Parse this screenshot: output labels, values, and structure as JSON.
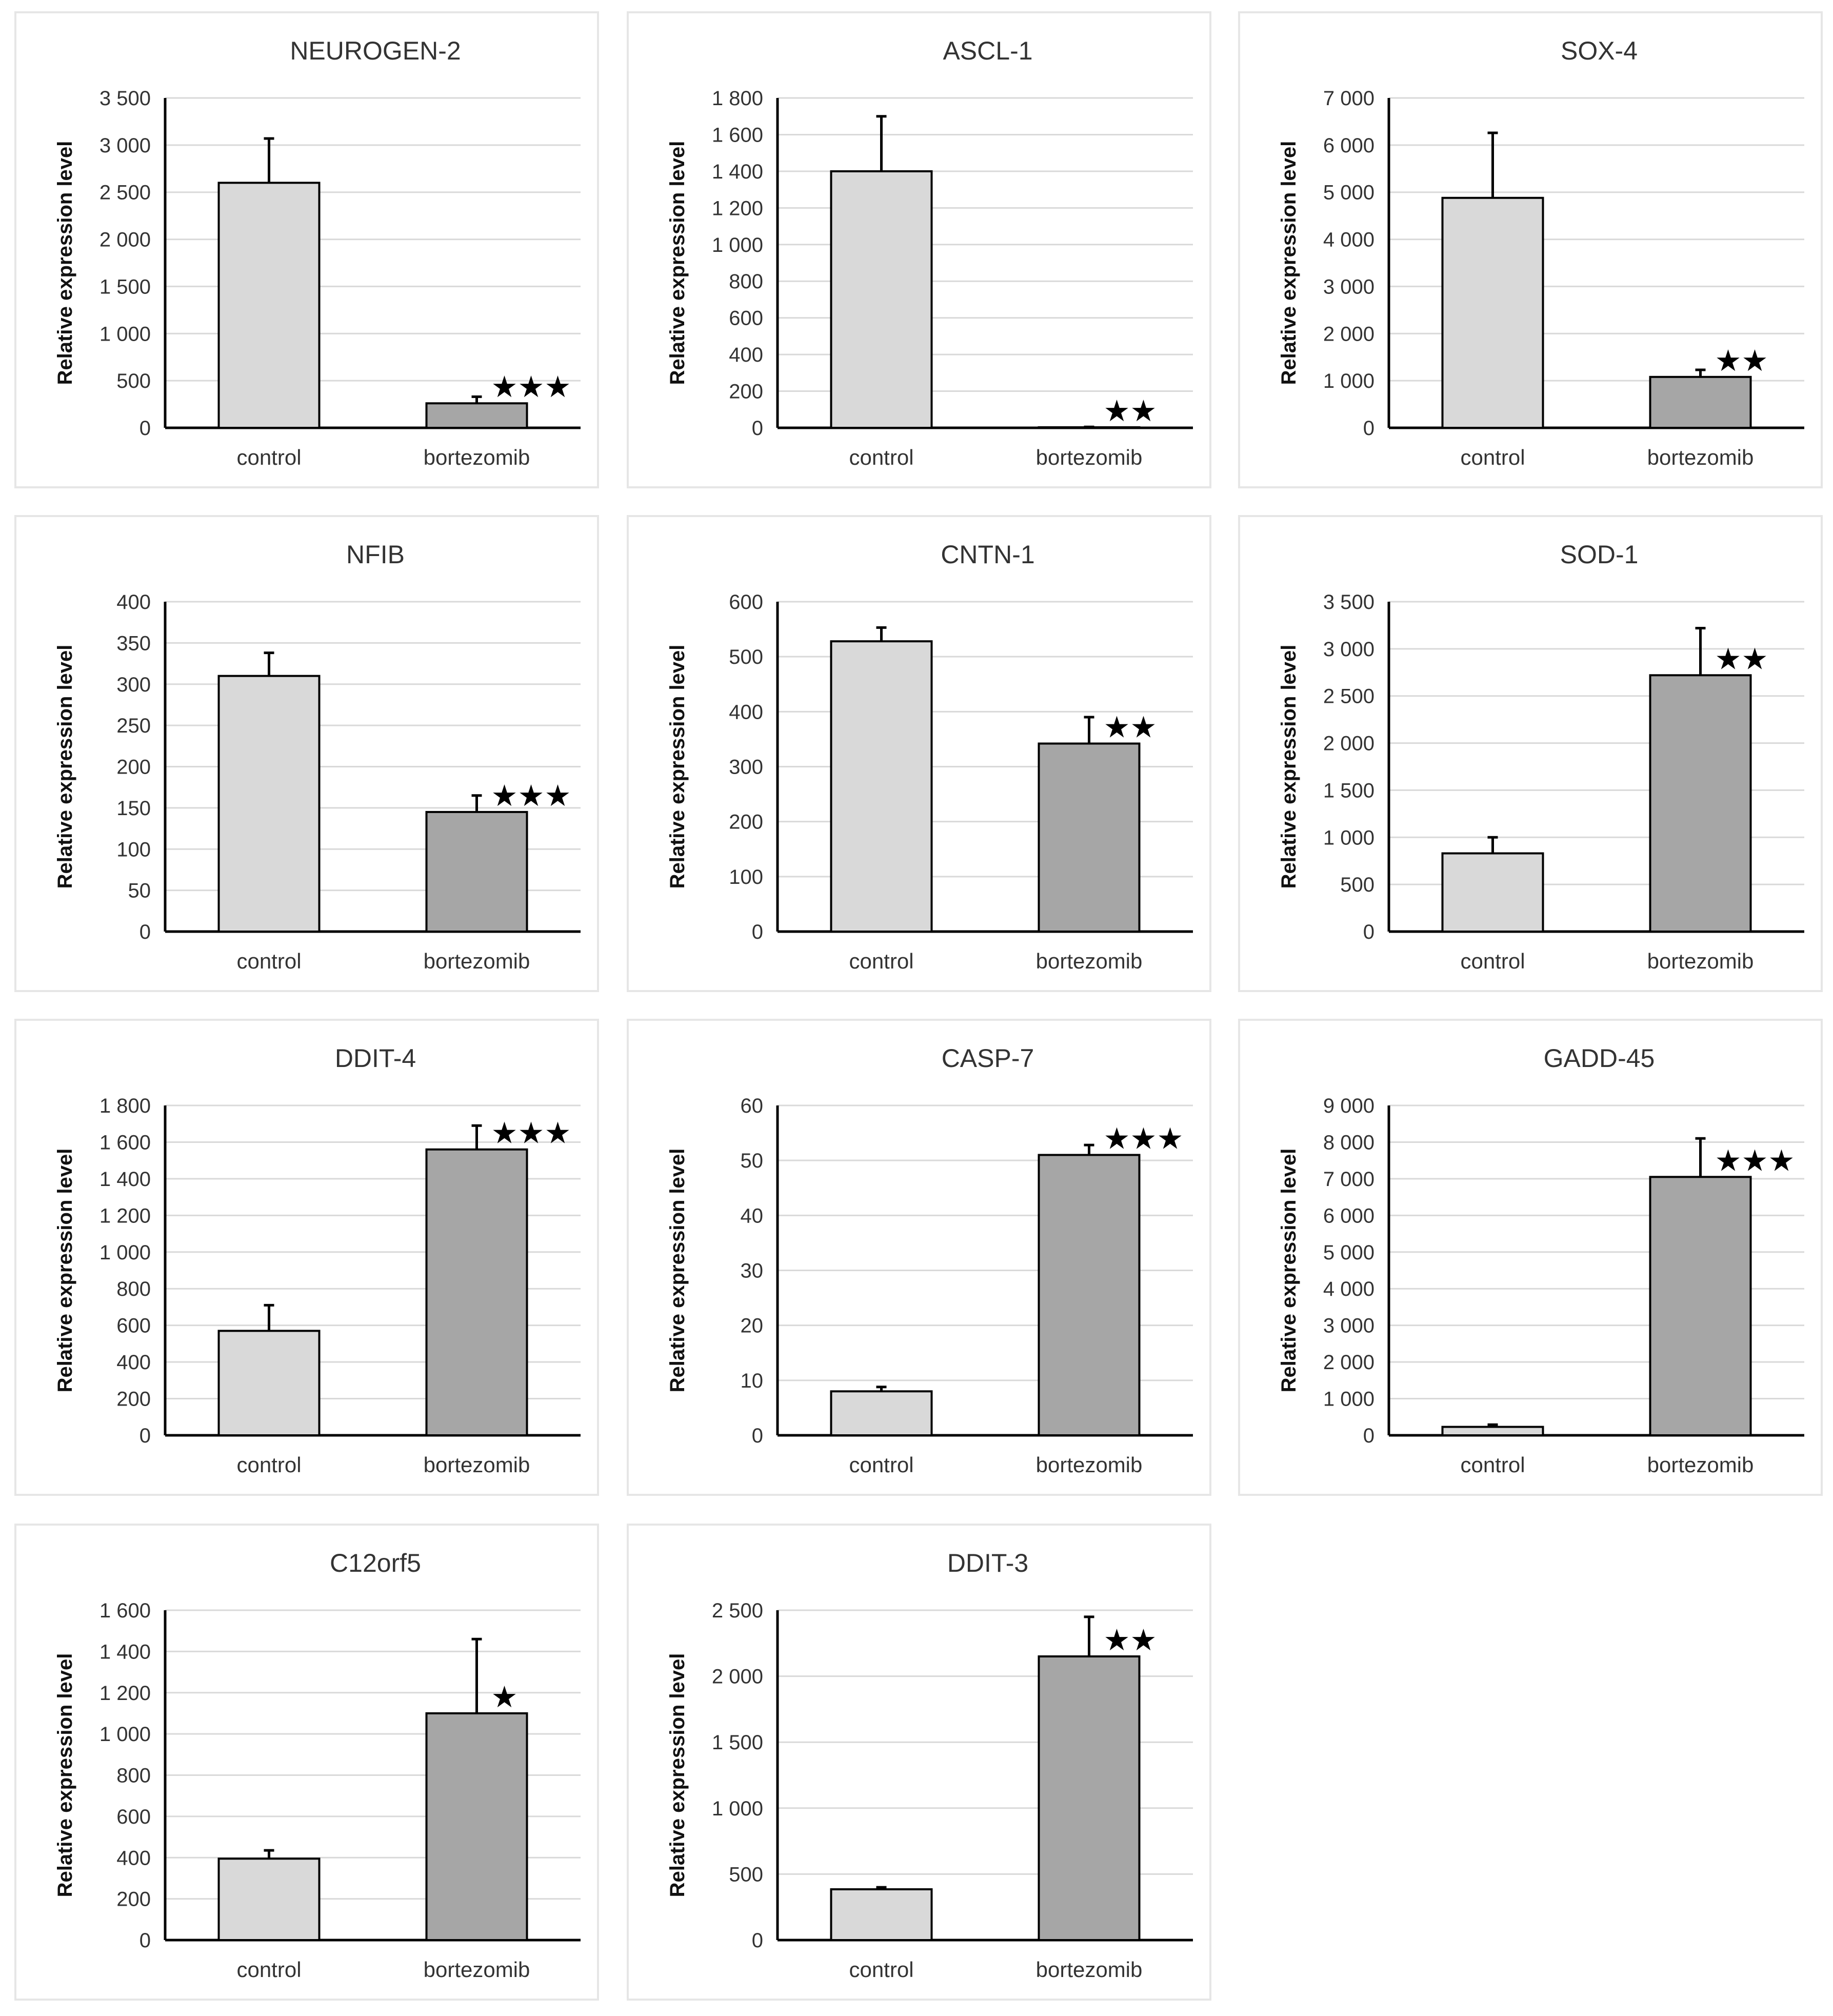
{
  "colors": {
    "control_bar": "#d9d9d9",
    "bortezomib_bar": "#a6a6a6",
    "bar_stroke": "#000000",
    "gridline": "#d9d9d9",
    "axis": "#000000",
    "panel_border": "#e6e6e6"
  },
  "chart_data": [
    {
      "type": "bar",
      "title": "NEUROGEN-2",
      "ylabel": "Relative expression level",
      "xlabel": "",
      "categories": [
        "control",
        "bortezomib"
      ],
      "values": [
        2600,
        260
      ],
      "errors": [
        470,
        70
      ],
      "significance": [
        "",
        "***"
      ],
      "ylim": [
        0,
        3500
      ],
      "yticks": [
        0,
        500,
        1000,
        1500,
        2000,
        2500,
        3000,
        3500
      ],
      "ytick_labels": [
        "0",
        "500",
        "1 000",
        "1 500",
        "2 000",
        "2 500",
        "3 000",
        "3 500"
      ],
      "grid": true
    },
    {
      "type": "bar",
      "title": "ASCL-1",
      "ylabel": "Relative expression level",
      "xlabel": "",
      "categories": [
        "control",
        "bortezomib"
      ],
      "values": [
        1400,
        3
      ],
      "errors": [
        300,
        2
      ],
      "significance": [
        "",
        "**"
      ],
      "ylim": [
        0,
        1800
      ],
      "yticks": [
        0,
        200,
        400,
        600,
        800,
        1000,
        1200,
        1400,
        1600,
        1800
      ],
      "ytick_labels": [
        "0",
        "200",
        "400",
        "600",
        "800",
        "1 000",
        "1 200",
        "1 400",
        "1 600",
        "1 800"
      ],
      "grid": true
    },
    {
      "type": "bar",
      "title": "SOX-4",
      "ylabel": "Relative expression level",
      "xlabel": "",
      "categories": [
        "control",
        "bortezomib"
      ],
      "values": [
        4880,
        1080
      ],
      "errors": [
        1380,
        150
      ],
      "significance": [
        "",
        "**"
      ],
      "ylim": [
        0,
        7000
      ],
      "yticks": [
        0,
        1000,
        2000,
        3000,
        4000,
        5000,
        6000,
        7000
      ],
      "ytick_labels": [
        "0",
        "1 000",
        "2 000",
        "3 000",
        "4 000",
        "5 000",
        "6 000",
        "7 000"
      ],
      "grid": true
    },
    {
      "type": "bar",
      "title": "NFIB",
      "ylabel": "Relative expression level",
      "xlabel": "",
      "categories": [
        "control",
        "bortezomib"
      ],
      "values": [
        310,
        145
      ],
      "errors": [
        28,
        20
      ],
      "significance": [
        "",
        "***"
      ],
      "ylim": [
        0,
        400
      ],
      "yticks": [
        0,
        50,
        100,
        150,
        200,
        250,
        300,
        350,
        400
      ],
      "ytick_labels": [
        "0",
        "50",
        "100",
        "150",
        "200",
        "250",
        "300",
        "350",
        "400"
      ],
      "grid": true
    },
    {
      "type": "bar",
      "title": "CNTN-1",
      "ylabel": "Relative expression level",
      "xlabel": "",
      "categories": [
        "control",
        "bortezomib"
      ],
      "values": [
        528,
        342
      ],
      "errors": [
        25,
        48
      ],
      "significance": [
        "",
        "**"
      ],
      "ylim": [
        0,
        600
      ],
      "yticks": [
        0,
        100,
        200,
        300,
        400,
        500,
        600
      ],
      "ytick_labels": [
        "0",
        "100",
        "200",
        "300",
        "400",
        "500",
        "600"
      ],
      "grid": true
    },
    {
      "type": "bar",
      "title": "SOD-1",
      "ylabel": "Relative expression level",
      "xlabel": "",
      "categories": [
        "control",
        "bortezomib"
      ],
      "values": [
        830,
        2720
      ],
      "errors": [
        170,
        500
      ],
      "significance": [
        "",
        "**"
      ],
      "ylim": [
        0,
        3500
      ],
      "yticks": [
        0,
        500,
        1000,
        1500,
        2000,
        2500,
        3000,
        3500
      ],
      "ytick_labels": [
        "0",
        "500",
        "1 000",
        "1 500",
        "2 000",
        "2 500",
        "3 000",
        "3 500"
      ],
      "grid": true
    },
    {
      "type": "bar",
      "title": "DDIT-4",
      "ylabel": "Relative expression level",
      "xlabel": "",
      "categories": [
        "control",
        "bortezomib"
      ],
      "values": [
        570,
        1560
      ],
      "errors": [
        140,
        130
      ],
      "significance": [
        "",
        "***"
      ],
      "ylim": [
        0,
        1800
      ],
      "yticks": [
        0,
        200,
        400,
        600,
        800,
        1000,
        1200,
        1400,
        1600,
        1800
      ],
      "ytick_labels": [
        "0",
        "200",
        "400",
        "600",
        "800",
        "1 000",
        "1 200",
        "1 400",
        "1 600",
        "1 800"
      ],
      "grid": true
    },
    {
      "type": "bar",
      "title": "CASP-7",
      "ylabel": "Relative expression level",
      "xlabel": "",
      "categories": [
        "control",
        "bortezomib"
      ],
      "values": [
        8,
        51
      ],
      "errors": [
        0.8,
        1.8
      ],
      "significance": [
        "",
        "***"
      ],
      "ylim": [
        0,
        60
      ],
      "yticks": [
        0,
        10,
        20,
        30,
        40,
        50,
        60
      ],
      "ytick_labels": [
        "0",
        "10",
        "20",
        "30",
        "40",
        "50",
        "60"
      ],
      "grid": true
    },
    {
      "type": "bar",
      "title": "GADD-45",
      "ylabel": "Relative expression level",
      "xlabel": "",
      "categories": [
        "control",
        "bortezomib"
      ],
      "values": [
        230,
        7050
      ],
      "errors": [
        60,
        1050
      ],
      "significance": [
        "",
        "***"
      ],
      "ylim": [
        0,
        9000
      ],
      "yticks": [
        0,
        1000,
        2000,
        3000,
        4000,
        5000,
        6000,
        7000,
        8000,
        9000
      ],
      "ytick_labels": [
        "0",
        "1 000",
        "2 000",
        "3 000",
        "4 000",
        "5 000",
        "6 000",
        "7 000",
        "8 000",
        "9 000"
      ],
      "grid": true
    },
    {
      "type": "bar",
      "title": "C12orf5",
      "ylabel": "Relative expression level",
      "xlabel": "",
      "categories": [
        "control",
        "bortezomib"
      ],
      "values": [
        395,
        1100
      ],
      "errors": [
        40,
        360
      ],
      "significance": [
        "",
        "*"
      ],
      "ylim": [
        0,
        1600
      ],
      "yticks": [
        0,
        200,
        400,
        600,
        800,
        1000,
        1200,
        1400,
        1600
      ],
      "ytick_labels": [
        "0",
        "200",
        "400",
        "600",
        "800",
        "1 000",
        "1 200",
        "1 400",
        "1 600"
      ],
      "grid": true
    },
    {
      "type": "bar",
      "title": "DDIT-3",
      "ylabel": "Relative expression level",
      "xlabel": "",
      "categories": [
        "control",
        "bortezomib"
      ],
      "values": [
        385,
        2150
      ],
      "errors": [
        15,
        300
      ],
      "significance": [
        "",
        "**"
      ],
      "ylim": [
        0,
        2500
      ],
      "yticks": [
        0,
        500,
        1000,
        1500,
        2000,
        2500
      ],
      "ytick_labels": [
        "0",
        "500",
        "1 000",
        "1 500",
        "2 000",
        "2 500"
      ],
      "grid": true
    }
  ]
}
